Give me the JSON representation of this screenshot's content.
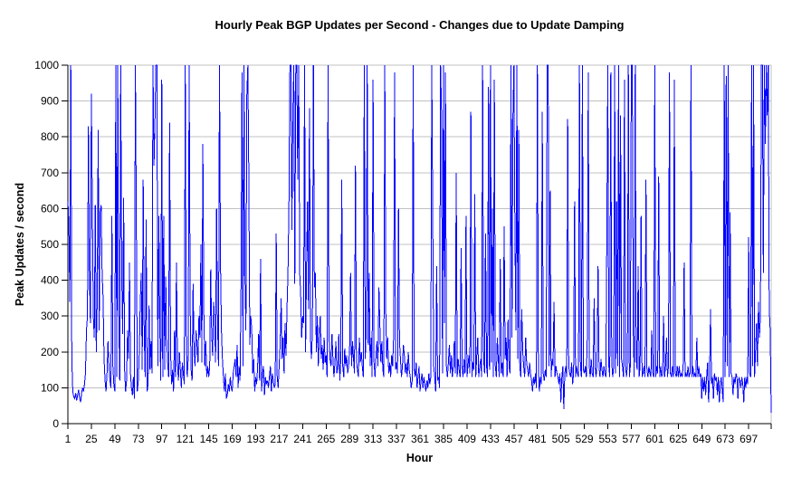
{
  "chart_data": {
    "type": "line",
    "title": "Hourly Peak BGP Updates per Second - Changes due to Update Damping",
    "xlabel": "Hour",
    "ylabel": "Peak Updates / second",
    "ylim": [
      0,
      1000
    ],
    "y_ticks": [
      0,
      100,
      200,
      300,
      400,
      500,
      600,
      700,
      800,
      900,
      1000
    ],
    "x_ticks": [
      1,
      25,
      49,
      73,
      97,
      121,
      145,
      169,
      193,
      217,
      241,
      265,
      289,
      313,
      337,
      361,
      385,
      409,
      433,
      457,
      481,
      505,
      529,
      553,
      577,
      601,
      625,
      649,
      673,
      697
    ],
    "x_start_hour": 1,
    "grid": "horizontal-major",
    "legend": "none",
    "line_color": "#0000FF",
    "gridline_color": "#c0c0c0",
    "axis_color": "#000000",
    "background_color": "#ffffff",
    "values": [
      620,
      560,
      340,
      1000,
      180,
      90,
      75,
      70,
      85,
      65,
      80,
      95,
      70,
      60,
      85,
      100,
      90,
      110,
      140,
      260,
      300,
      830,
      420,
      280,
      920,
      610,
      300,
      240,
      610,
      200,
      340,
      820,
      260,
      590,
      610,
      420,
      350,
      180,
      120,
      90,
      140,
      230,
      160,
      120,
      100,
      580,
      160,
      110,
      90,
      1000,
      130,
      1000,
      310,
      120,
      1000,
      420,
      250,
      630,
      150,
      90,
      120,
      260,
      180,
      450,
      140,
      100,
      80,
      130,
      70,
      1000,
      560,
      90,
      120,
      200,
      340,
      420,
      150,
      680,
      260,
      130,
      570,
      90,
      110,
      330,
      150,
      230,
      140,
      1000,
      720,
      840,
      1000,
      1000,
      160,
      580,
      260,
      120,
      960,
      130,
      580,
      150,
      410,
      240,
      170,
      130,
      840,
      200,
      110,
      150,
      90,
      260,
      130,
      450,
      170,
      120,
      200,
      150,
      100,
      170,
      140,
      110,
      1000,
      240,
      130,
      180,
      1000,
      330,
      150,
      120,
      390,
      200,
      160,
      260,
      220,
      170,
      300,
      240,
      500,
      170,
      780,
      310,
      160,
      230,
      130,
      160,
      130,
      160,
      430,
      250,
      190,
      340,
      290,
      170,
      600,
      280,
      160,
      1000,
      450,
      260,
      180,
      130,
      90,
      140,
      70,
      80,
      110,
      90,
      130,
      100,
      90,
      140,
      160,
      180,
      130,
      220,
      100,
      160,
      120,
      380,
      980,
      160,
      1000,
      410,
      260,
      920,
      1000,
      680,
      220,
      300,
      260,
      140,
      180,
      90,
      130,
      110,
      160,
      250,
      120,
      460,
      90,
      140,
      160,
      80,
      130,
      110,
      120,
      100,
      130,
      160,
      90,
      140,
      120,
      100,
      110,
      530,
      130,
      100,
      160,
      220,
      350,
      180,
      240,
      140,
      280,
      190,
      320,
      420,
      610,
      1000,
      1000,
      540,
      870,
      1000,
      390,
      1000,
      1000,
      680,
      1000,
      420,
      360,
      240,
      300,
      280,
      1000,
      200,
      440,
      620,
      320,
      880,
      240,
      180,
      260,
      1000,
      380,
      420,
      200,
      300,
      160,
      240,
      300,
      180,
      220,
      150,
      240,
      170,
      190,
      130,
      1000,
      240,
      180,
      160,
      250,
      180,
      130,
      170,
      230,
      140,
      160,
      250,
      120,
      180,
      680,
      160,
      130,
      210,
      160,
      190,
      140,
      160,
      210,
      420,
      160,
      230,
      180,
      140,
      720,
      180,
      150,
      130,
      240,
      170,
      200,
      160,
      130,
      1000,
      180,
      260,
      1000,
      220,
      420,
      160,
      240,
      130,
      960,
      170,
      130,
      190,
      230,
      160,
      380,
      270,
      170,
      230,
      150,
      130,
      1000,
      310,
      180,
      240,
      140,
      170,
      130,
      190,
      160,
      240,
      980,
      150,
      170,
      140,
      600,
      230,
      180,
      130,
      160,
      220,
      190,
      140,
      170,
      130,
      200,
      150,
      130,
      100,
      120,
      1000,
      150,
      130,
      170,
      100,
      130,
      160,
      90,
      120,
      140,
      100,
      130,
      110,
      90,
      120,
      100,
      140,
      110,
      130,
      1000,
      580,
      160,
      130,
      90,
      440,
      120,
      130,
      100,
      1000,
      870,
      140,
      1000,
      280,
      980,
      160,
      130,
      170,
      220,
      140,
      190,
      130,
      160,
      230,
      140,
      700,
      130,
      180,
      150,
      130,
      490,
      160,
      130,
      180,
      140,
      580,
      130,
      160,
      190,
      140,
      870,
      130,
      170,
      150,
      640,
      130,
      190,
      240,
      130,
      160,
      180,
      130,
      1000,
      180,
      140,
      530,
      160,
      130,
      940,
      150,
      1000,
      170,
      600,
      130,
      960,
      160,
      130,
      240,
      180,
      130,
      460,
      140,
      170,
      130,
      550,
      180,
      240,
      130,
      290,
      160,
      140,
      1000,
      240,
      860,
      1000,
      540,
      260,
      1000,
      180,
      820,
      160,
      130,
      320,
      200,
      160,
      130,
      240,
      170,
      150,
      130,
      170,
      140,
      120,
      90,
      130,
      110,
      140,
      100,
      1000,
      160,
      90,
      130,
      110,
      870,
      140,
      120,
      150,
      130,
      1000,
      1000,
      160,
      650,
      130,
      180,
      160,
      340,
      130,
      160,
      140,
      130,
      110,
      140,
      60,
      130,
      160,
      40,
      140,
      160,
      130,
      850,
      160,
      140,
      130,
      170,
      110,
      140,
      620,
      130,
      160,
      140,
      130,
      1000,
      160,
      130,
      1000,
      150,
      140,
      160,
      130,
      240,
      980,
      160,
      130,
      180,
      140,
      130,
      350,
      160,
      130,
      170,
      440,
      160,
      130,
      180,
      150,
      130,
      160,
      140,
      130,
      540,
      1000,
      160,
      130,
      980,
      170,
      130,
      160,
      1000,
      140,
      620,
      160,
      1000,
      130,
      860,
      180,
      160,
      130,
      960,
      170,
      130,
      160,
      1000,
      130,
      160,
      1000,
      1000,
      260,
      130,
      1000,
      180,
      150,
      440,
      130,
      160,
      580,
      130,
      140,
      160,
      130,
      680,
      150,
      130,
      160,
      140,
      130,
      260,
      140,
      130,
      1000,
      130,
      160,
      140,
      690,
      130,
      160,
      130,
      140,
      300,
      130,
      160,
      240,
      130,
      160,
      980,
      140,
      130,
      160,
      130,
      960,
      140,
      130,
      160,
      130,
      160,
      130,
      140,
      130,
      160,
      450,
      130,
      140,
      130,
      160,
      130,
      140,
      1000,
      130,
      160,
      130,
      140,
      130,
      240,
      130,
      160,
      130,
      140,
      70,
      130,
      90,
      130,
      80,
      130,
      170,
      60,
      130,
      320,
      110,
      130,
      70,
      140,
      120,
      130,
      80,
      130,
      60,
      110,
      130,
      90,
      60,
      1000,
      130,
      970,
      160,
      1000,
      130,
      590,
      140,
      130,
      80,
      130,
      110,
      140,
      130,
      70,
      130,
      120,
      100,
      130,
      110,
      60,
      130,
      100,
      130,
      110,
      520,
      140,
      130,
      1000,
      160,
      1000,
      130,
      200,
      280,
      160,
      340,
      240,
      300,
      1000,
      1000,
      420,
      1000,
      780,
      1000,
      860,
      1000,
      320,
      260,
      30
    ]
  }
}
